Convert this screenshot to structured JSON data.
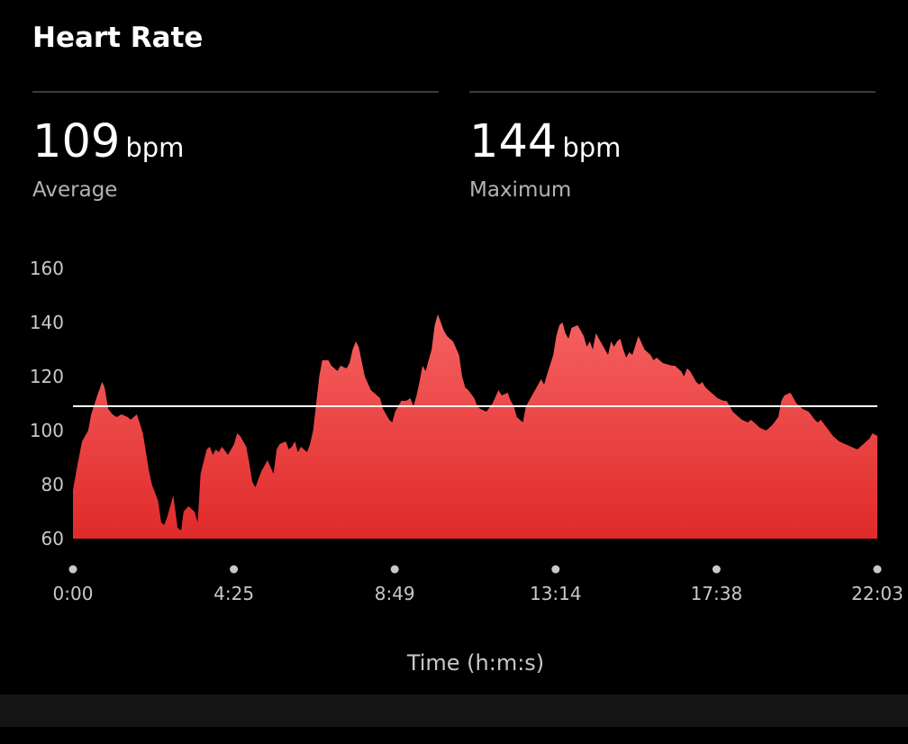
{
  "header": {
    "title": "Heart Rate"
  },
  "stats": [
    {
      "value": "109",
      "unit": "bpm",
      "label": "Average"
    },
    {
      "value": "144",
      "unit": "bpm",
      "label": "Maximum"
    }
  ],
  "colors": {
    "background": "#000000",
    "area_top": "#f66262",
    "area_bottom": "#e02a2a",
    "average_line": "#ffffff",
    "muted_text": "#b3b3b3"
  },
  "chart_data": {
    "type": "area",
    "xlabel": "Time (h:m:s)",
    "ylabel": "",
    "x_ticks": [
      "0:00",
      "4:25",
      "8:49",
      "13:14",
      "17:38",
      "22:03"
    ],
    "y_ticks": [
      160,
      140,
      120,
      100,
      80,
      60
    ],
    "ylim": [
      60,
      160
    ],
    "xlim_seconds": [
      0,
      1323
    ],
    "grid": false,
    "reference_line": {
      "label": "Average",
      "value": 109
    },
    "series": [
      {
        "x_seconds": [
          0,
          8,
          15,
          25,
          30,
          40,
          48,
          52,
          58,
          65,
          72,
          80,
          90,
          95,
          105,
          115,
          125,
          130,
          135,
          140,
          145,
          150,
          155,
          160,
          165,
          172,
          178,
          182,
          190,
          200,
          205,
          210,
          220,
          225,
          230,
          235,
          240,
          245,
          255,
          260,
          265,
          270,
          275,
          285,
          290,
          295,
          300,
          310,
          320,
          330,
          335,
          340,
          350,
          355,
          360,
          365,
          370,
          375,
          380,
          385,
          390,
          395,
          400,
          405,
          410,
          420,
          425,
          435,
          440,
          450,
          455,
          460,
          465,
          470,
          480,
          490,
          495,
          500,
          505,
          510,
          520,
          525,
          530,
          535,
          540,
          548,
          555,
          560,
          565,
          570,
          575,
          580,
          590,
          595,
          600,
          605,
          610,
          615,
          620,
          625,
          635,
          640,
          645,
          650,
          660,
          665,
          670,
          680,
          690,
          700,
          705,
          715,
          720,
          725,
          730,
          740,
          745,
          760,
          770,
          775,
          780,
          790,
          795,
          800,
          805,
          810,
          815,
          820,
          830,
          840,
          845,
          850,
          855,
          860,
          870,
          880,
          885,
          890,
          895,
          900,
          905,
          910,
          915,
          920,
          930,
          940,
          950,
          955,
          960,
          970,
          985,
          990,
          1000,
          1005,
          1010,
          1015,
          1020,
          1025,
          1030,
          1035,
          1040,
          1050,
          1060,
          1070,
          1075,
          1080,
          1085,
          1090,
          1095,
          1100,
          1110,
          1115,
          1120,
          1125,
          1130,
          1140,
          1145,
          1150,
          1160,
          1165,
          1170,
          1180,
          1185,
          1190,
          1200,
          1210,
          1220,
          1225,
          1230,
          1240,
          1250,
          1260,
          1270,
          1280,
          1290,
          1300,
          1310,
          1315,
          1323
        ],
        "y_bpm": [
          78,
          88,
          96,
          100,
          106,
          113,
          118,
          116,
          108,
          106,
          105,
          106,
          105,
          104,
          106,
          99,
          85,
          80,
          77,
          74,
          66,
          65,
          68,
          72,
          76,
          64,
          63,
          70,
          72,
          70,
          66,
          84,
          93,
          94,
          91,
          93,
          92,
          94,
          91,
          93,
          95,
          99,
          98,
          94,
          88,
          81,
          79,
          85,
          89,
          84,
          93,
          95,
          96,
          93,
          94,
          96,
          92,
          94,
          93,
          92,
          95,
          100,
          110,
          120,
          126,
          126,
          124,
          122,
          124,
          123,
          125,
          130,
          133,
          131,
          120,
          115,
          114,
          113,
          112,
          108,
          104,
          103,
          107,
          109,
          111,
          111,
          112,
          109,
          113,
          118,
          124,
          122,
          130,
          139,
          143,
          140,
          137,
          135,
          134,
          133,
          128,
          120,
          116,
          115,
          112,
          109,
          108,
          107,
          110,
          115,
          113,
          114,
          111,
          109,
          105,
          103,
          109,
          115,
          119,
          117,
          121,
          128,
          135,
          139,
          140,
          136,
          134,
          138,
          139,
          135,
          131,
          133,
          130,
          136,
          132,
          128,
          133,
          131,
          133,
          134,
          130,
          127,
          129,
          128,
          135,
          130,
          128,
          126,
          127,
          125,
          124,
          124,
          122,
          120,
          123,
          122,
          120,
          118,
          117,
          118,
          116,
          114,
          112,
          111,
          111,
          109,
          107,
          106,
          105,
          104,
          103,
          104,
          103,
          102,
          101,
          100,
          101,
          102,
          105,
          111,
          113,
          114,
          112,
          110,
          108,
          107,
          104,
          103,
          104,
          101,
          98,
          96,
          95,
          94,
          93,
          95,
          97,
          99,
          98
        ]
      }
    ]
  }
}
